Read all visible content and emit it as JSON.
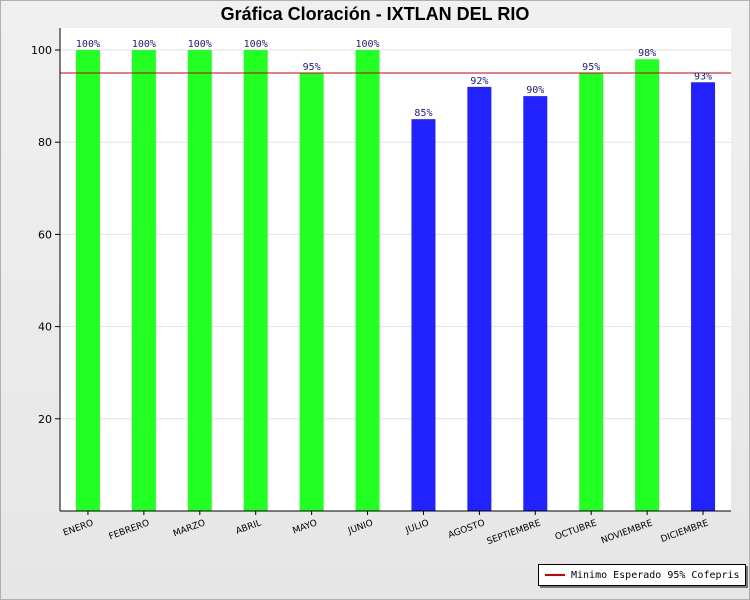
{
  "chart_data": {
    "type": "bar",
    "title": "Gráfica Cloración - IXTLAN DEL RIO",
    "categories": [
      "ENERO",
      "FEBRERO",
      "MARZO",
      "ABRIL",
      "MAYO",
      "JUNIO",
      "JULIO",
      "AGOSTO",
      "SEPTIEMBRE",
      "OCTUBRE",
      "NOVIEMBRE",
      "DICIEMBRE"
    ],
    "values": [
      100,
      100,
      100,
      100,
      95,
      100,
      85,
      92,
      90,
      95,
      98,
      93
    ],
    "data_labels": [
      "100%",
      "100%",
      "100%",
      "100%",
      "95%",
      "100%",
      "85%",
      "92%",
      "90%",
      "95%",
      "98%",
      "93%"
    ],
    "bar_colors": [
      "#22ff22",
      "#22ff22",
      "#22ff22",
      "#22ff22",
      "#22ff22",
      "#22ff22",
      "#2222ff",
      "#2222ff",
      "#2222ff",
      "#22ff22",
      "#22ff22",
      "#2222ff"
    ],
    "ylim": [
      0,
      100
    ],
    "yticks": [
      20,
      40,
      60,
      80,
      100
    ],
    "grid": true,
    "reference_line": {
      "value": 95,
      "color": "#cc0000",
      "label": "Minimo Esperado 95% Cofepris"
    },
    "legend_position": "bottom-right"
  }
}
